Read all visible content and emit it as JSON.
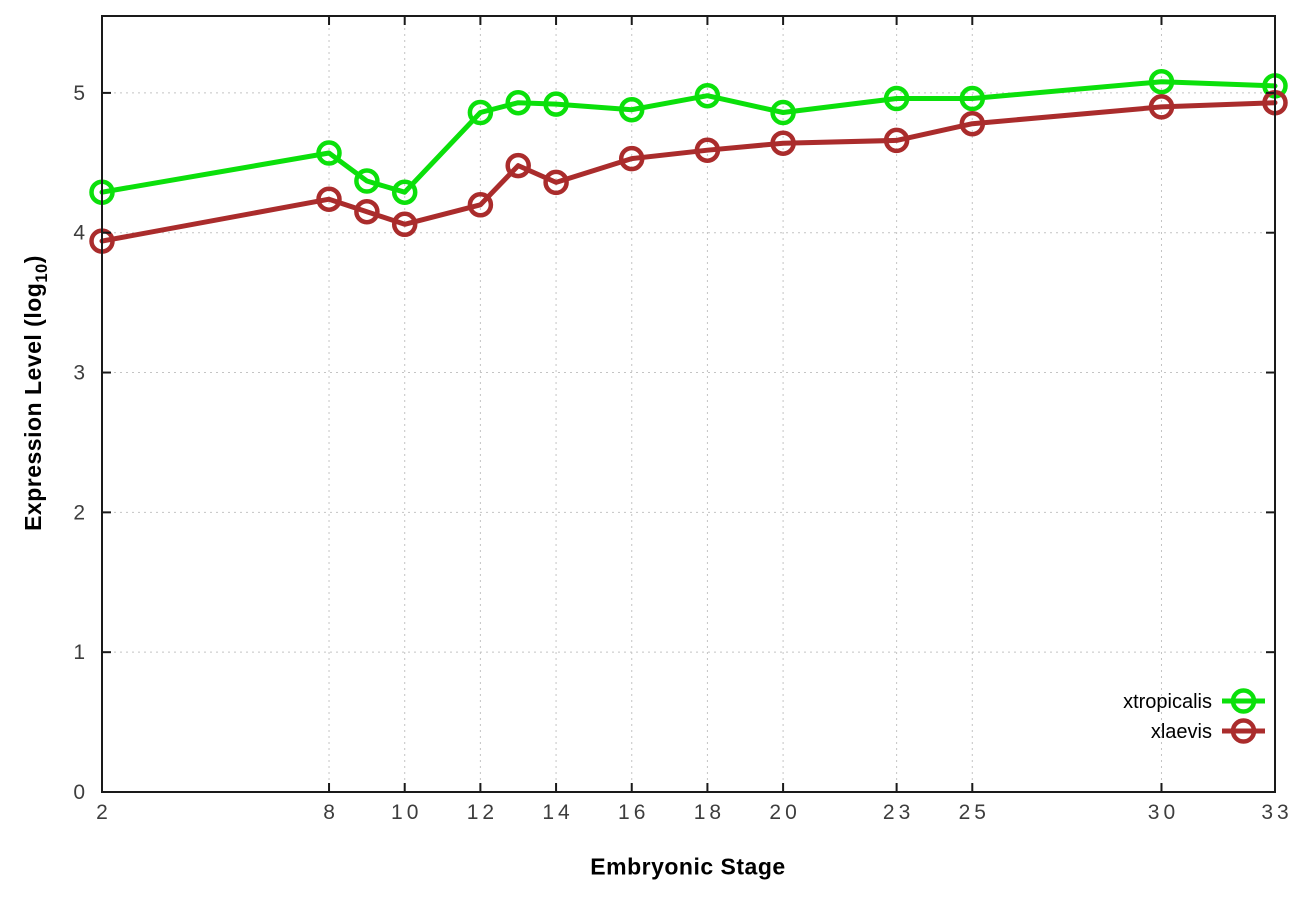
{
  "chart_data": {
    "type": "line",
    "title": "",
    "xlabel": "Embryonic Stage",
    "ylabel": "Expression Level (log10)",
    "x": [
      2,
      8,
      9,
      10,
      12,
      13,
      14,
      16,
      18,
      20,
      23,
      25,
      30,
      33
    ],
    "x_tick_labels": [
      2,
      8,
      10,
      12,
      14,
      16,
      18,
      20,
      23,
      25,
      30,
      33
    ],
    "y_tick_labels": [
      0,
      1,
      2,
      3,
      4,
      5
    ],
    "xlim": [
      2,
      33
    ],
    "ylim": [
      0,
      5.55
    ],
    "grid": true,
    "grid_style": "dotted",
    "legend_position": "inside-right",
    "series": [
      {
        "name": "xtropicalis",
        "color": "#0be00b",
        "marker": "open-circle",
        "values": [
          4.29,
          4.57,
          4.37,
          4.29,
          4.86,
          4.93,
          4.92,
          4.88,
          4.98,
          4.86,
          4.96,
          4.96,
          5.08,
          5.05
        ]
      },
      {
        "name": "xlaevis",
        "color": "#aa2c2c",
        "marker": "open-circle",
        "values": [
          3.94,
          4.24,
          4.15,
          4.06,
          4.2,
          4.48,
          4.36,
          4.53,
          4.59,
          4.64,
          4.66,
          4.78,
          4.9,
          4.93
        ]
      }
    ]
  },
  "axes": {
    "x_label": "Embryonic Stage",
    "y_label_prefix": "Expression Level (log",
    "y_label_subscript": "10",
    "y_label_suffix": ")"
  },
  "colors": {
    "background": "#ffffff",
    "border": "#1a1a1a",
    "grid": "#c4c4c4",
    "tick_label": "#3d3d3d",
    "legend_text": "#000000"
  }
}
